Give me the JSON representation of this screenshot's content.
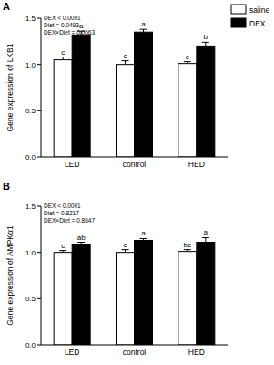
{
  "chart_data": [
    {
      "type": "bar",
      "panel": "A",
      "y_label": "Gene expression of LKB1",
      "stats": [
        "DEX < 0.0001",
        "Diet = 0.0493",
        "DEX×Diet = 0.0663"
      ],
      "categories": [
        "LED",
        "control",
        "HED"
      ],
      "series": [
        {
          "name": "saline",
          "color": "#ffffff",
          "values": [
            1.05,
            1.0,
            1.01
          ],
          "errors": [
            0.03,
            0.04,
            0.02
          ],
          "letters": [
            "c",
            "c",
            "c"
          ]
        },
        {
          "name": "DEX",
          "color": "#000000",
          "values": [
            1.32,
            1.35,
            1.2
          ],
          "errors": [
            0.04,
            0.03,
            0.04
          ],
          "letters": [
            "a",
            "a",
            "b"
          ]
        }
      ],
      "ylim": [
        0,
        1.5
      ],
      "yticks": [
        {
          "value": 0,
          "label": "0.0"
        },
        0.5,
        {
          "value": 1,
          "label": "1.0"
        },
        1.5
      ],
      "legend": "top-right"
    },
    {
      "type": "bar",
      "panel": "B",
      "y_label": "Gene expression of AMPKα1",
      "stats": [
        "DEX < 0.0001",
        "Diet = 0.8217",
        "DEX×Diet = 0.8647"
      ],
      "categories": [
        "LED",
        "control",
        "HED"
      ],
      "series": [
        {
          "color": "#ffffff",
          "values": [
            1.0,
            1.0,
            1.01
          ],
          "errors": [
            0.02,
            0.03,
            0.02
          ],
          "letters": [
            "c",
            "c",
            "bc"
          ]
        },
        {
          "color": "#000000",
          "values": [
            1.09,
            1.13,
            1.11
          ],
          "errors": [
            0.02,
            0.02,
            0.05
          ],
          "letters": [
            "ab",
            "a",
            "a"
          ]
        }
      ],
      "ylim": [
        0,
        1.5
      ],
      "yticks": [
        {
          "value": 0,
          "label": "0.0"
        },
        0.5,
        {
          "value": 1,
          "label": "1.0"
        },
        1.5
      ]
    }
  ]
}
